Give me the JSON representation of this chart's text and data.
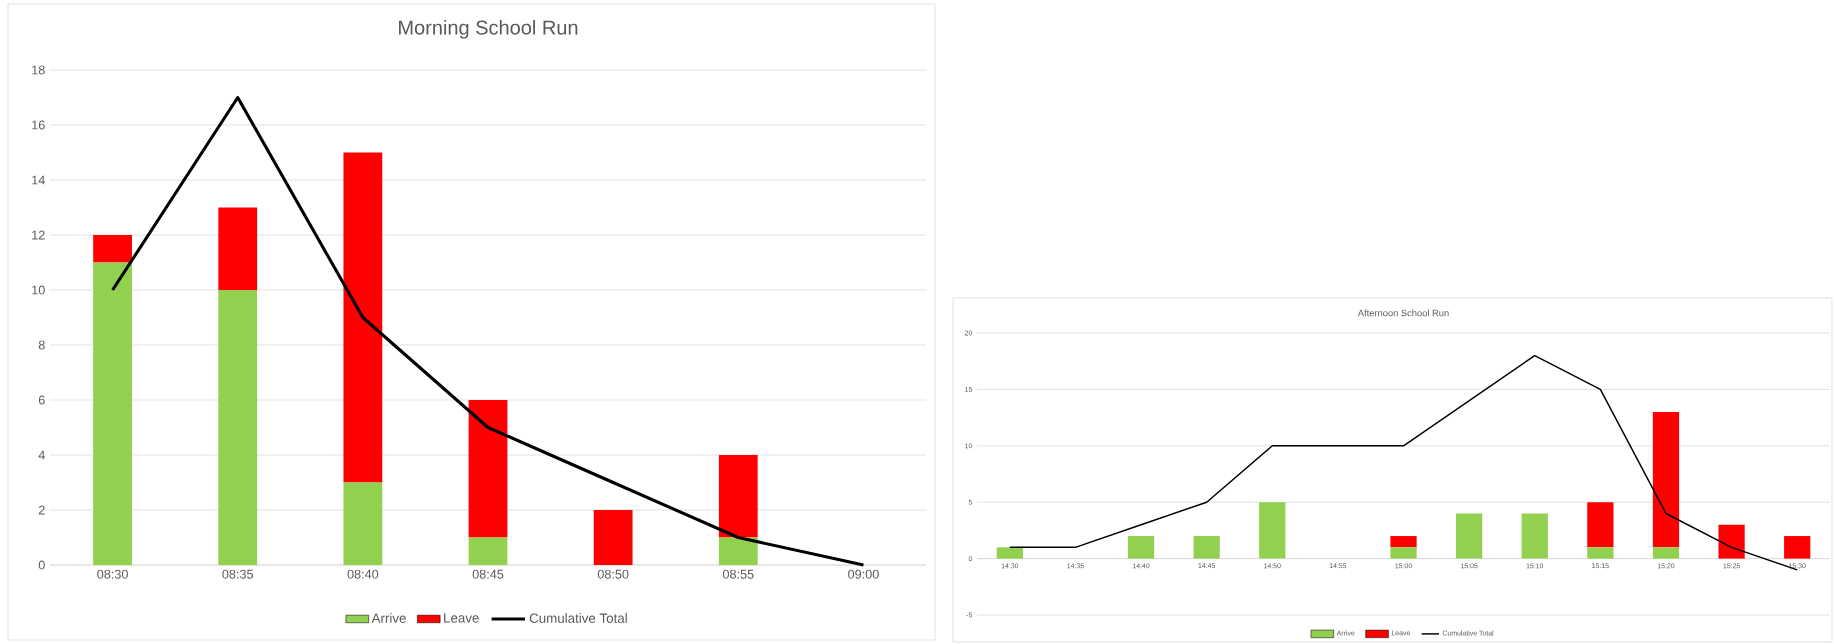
{
  "chart_data": [
    {
      "type": "bar",
      "title": "Morning School Run",
      "stacked": true,
      "grid": "y",
      "legend": "bottom",
      "categories": [
        "08:30",
        "08:35",
        "08:40",
        "08:45",
        "08:50",
        "08:55",
        "09:00"
      ],
      "ylim": [
        0,
        18
      ],
      "yticks": [
        0,
        2,
        4,
        6,
        8,
        10,
        12,
        14,
        16,
        18
      ],
      "series": [
        {
          "name": "Arrive",
          "color": "#92d050",
          "values": [
            11,
            10,
            3,
            1,
            0,
            1,
            0
          ]
        },
        {
          "name": "Leave",
          "color": "#ff0000",
          "values": [
            1,
            3,
            12,
            5,
            2,
            3,
            0
          ]
        },
        {
          "name": "Cumulative Total",
          "type": "line",
          "color": "#000000",
          "values": [
            10,
            17,
            9,
            5,
            3,
            1,
            0
          ]
        }
      ]
    },
    {
      "type": "bar",
      "title": "Afternoon School Run",
      "stacked": true,
      "grid": "y",
      "legend": "bottom",
      "categories": [
        "14:30",
        "14:35",
        "14:40",
        "14:45",
        "14:50",
        "14:55",
        "15:00",
        "15:05",
        "15:10",
        "15:15",
        "15:20",
        "15:25",
        "15:30"
      ],
      "ylim": [
        -5,
        20
      ],
      "yticks": [
        -5,
        0,
        5,
        10,
        15,
        20
      ],
      "series": [
        {
          "name": "Arrive",
          "color": "#92d050",
          "values": [
            1,
            0,
            2,
            2,
            5,
            0,
            1,
            4,
            4,
            1,
            1,
            0,
            0
          ]
        },
        {
          "name": "Leave",
          "color": "#ff0000",
          "values": [
            0,
            0,
            0,
            0,
            0,
            0,
            1,
            0,
            0,
            4,
            12,
            3,
            2
          ]
        },
        {
          "name": "Cumulative Total",
          "type": "line",
          "color": "#000000",
          "values": [
            1,
            1,
            3,
            5,
            10,
            10,
            10,
            14,
            18,
            15,
            4,
            1,
            -1
          ]
        }
      ]
    }
  ]
}
